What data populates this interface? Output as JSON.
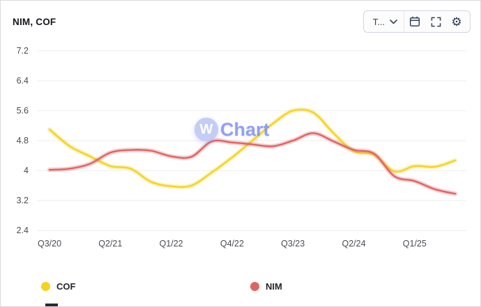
{
  "header": {
    "title": "NIM, COF",
    "controls": {
      "dropdown_label": "T...",
      "gear_glyph": "⚙",
      "icons": [
        "chevron-down-icon",
        "calendar-icon",
        "fullscreen-icon",
        "gear-icon"
      ]
    }
  },
  "watermark": {
    "logo_letter": "W",
    "text": "Chart"
  },
  "legend": [
    {
      "label": "COF",
      "color": "#f4d321"
    },
    {
      "label": "NIM",
      "color": "#e06363"
    }
  ],
  "chart_data": {
    "type": "line",
    "title": "NIM, COF",
    "x_categories": [
      "Q3/20",
      "Q4/20",
      "Q1/21",
      "Q2/21",
      "Q3/21",
      "Q4/21",
      "Q1/22",
      "Q2/22",
      "Q3/22",
      "Q4/22",
      "Q1/23",
      "Q2/23",
      "Q3/23",
      "Q4/23",
      "Q1/24",
      "Q2/24",
      "Q3/24",
      "Q4/24",
      "Q1/25",
      "Q2/25",
      "Q3/25"
    ],
    "x_tick_every": 3,
    "x_tick_labels": [
      "Q3/20",
      "Q2/21",
      "Q1/22",
      "Q4/22",
      "Q3/23",
      "Q2/24",
      "Q1/25"
    ],
    "y_ticks": [
      7.2,
      6.4,
      5.6,
      4.8,
      4,
      3.2,
      2.4
    ],
    "ylim": [
      2.4,
      7.2
    ],
    "grid": "horizontal",
    "legend_position": "bottom",
    "series": [
      {
        "name": "COF",
        "color": "#f4d321",
        "values": [
          5.1,
          4.65,
          4.38,
          4.12,
          4.05,
          3.7,
          3.58,
          3.6,
          3.95,
          4.35,
          4.8,
          5.25,
          5.6,
          5.55,
          5.0,
          4.52,
          4.42,
          3.98,
          4.12,
          4.1,
          4.27
        ]
      },
      {
        "name": "NIM",
        "color": "#e06363",
        "values": [
          4.02,
          4.05,
          4.18,
          4.48,
          4.55,
          4.53,
          4.38,
          4.37,
          4.78,
          4.75,
          4.7,
          4.65,
          4.8,
          5.0,
          4.78,
          4.55,
          4.45,
          3.85,
          3.72,
          3.5,
          3.38
        ]
      }
    ]
  }
}
